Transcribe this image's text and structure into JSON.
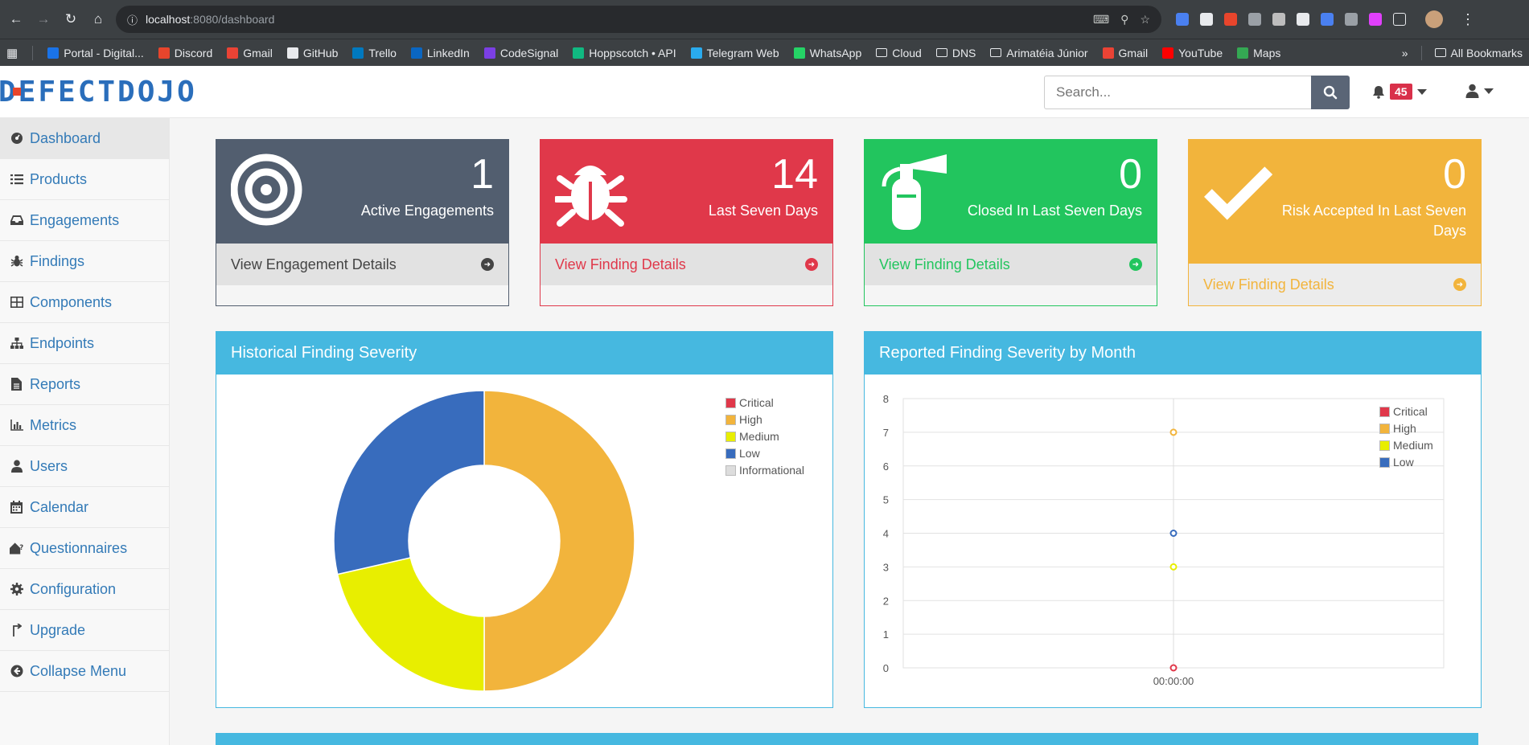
{
  "browser": {
    "url_host": "localhost",
    "url_rest": ":8080/dashboard",
    "bookmarks": [
      {
        "label": "Portal - Digital...",
        "color": "#1a73e8"
      },
      {
        "label": "Discord",
        "color": "#e8452c"
      },
      {
        "label": "Gmail",
        "color": "#ea4335"
      },
      {
        "label": "GitHub",
        "color": "#e8eaed"
      },
      {
        "label": "Trello",
        "color": "#0079bf"
      },
      {
        "label": "LinkedIn",
        "color": "#0a66c2"
      },
      {
        "label": "CodeSignal",
        "color": "#7b3fe4"
      },
      {
        "label": "Hoppscotch • API",
        "color": "#10b981"
      },
      {
        "label": "Telegram Web",
        "color": "#2aabee"
      },
      {
        "label": "WhatsApp",
        "color": "#25d366"
      }
    ],
    "folders": [
      "Cloud",
      "DNS",
      "Arimatéia Júnior"
    ],
    "bookmarks_tail": [
      {
        "label": "Gmail",
        "color": "#ea4335"
      },
      {
        "label": "YouTube",
        "color": "#ff0000"
      },
      {
        "label": "Maps",
        "color": "#34a853"
      }
    ],
    "more": "»",
    "all_bookmarks": "All Bookmarks"
  },
  "navbar": {
    "logo": "DEFECTDOJO",
    "search_placeholder": "Search...",
    "notification_count": "45"
  },
  "sidebar": {
    "items": [
      {
        "label": "Dashboard",
        "icon": "dashboard-icon"
      },
      {
        "label": "Products",
        "icon": "list-icon"
      },
      {
        "label": "Engagements",
        "icon": "inbox-icon"
      },
      {
        "label": "Findings",
        "icon": "bug-icon"
      },
      {
        "label": "Components",
        "icon": "table-icon"
      },
      {
        "label": "Endpoints",
        "icon": "sitemap-icon"
      },
      {
        "label": "Reports",
        "icon": "file-icon"
      },
      {
        "label": "Metrics",
        "icon": "bar-chart-icon"
      },
      {
        "label": "Users",
        "icon": "user-icon"
      },
      {
        "label": "Calendar",
        "icon": "calendar-icon"
      },
      {
        "label": "Questionnaires",
        "icon": "questionnaire-icon"
      },
      {
        "label": "Configuration",
        "icon": "gear-icon"
      },
      {
        "label": "Upgrade",
        "icon": "upgrade-icon"
      },
      {
        "label": "Collapse Menu",
        "icon": "collapse-icon"
      }
    ]
  },
  "stats": [
    {
      "value": "1",
      "label": "Active Engagements",
      "link": "View Engagement Details",
      "icon": "target-icon"
    },
    {
      "value": "14",
      "label": "Last Seven Days",
      "link": "View Finding Details",
      "icon": "bug-icon"
    },
    {
      "value": "0",
      "label": "Closed In Last Seven Days",
      "link": "View Finding Details",
      "icon": "fire-extinguisher-icon"
    },
    {
      "value": "0",
      "label": "Risk Accepted In Last Seven Days",
      "link": "View Finding Details",
      "icon": "check-icon"
    }
  ],
  "charts": {
    "historical_title": "Historical Finding Severity",
    "monthly_title": "Reported Finding Severity by Month"
  },
  "chart_data": [
    {
      "type": "pie",
      "title": "Historical Finding Severity",
      "categories": [
        "Critical",
        "High",
        "Medium",
        "Low",
        "Informational"
      ],
      "values": [
        0,
        7,
        3,
        4,
        0
      ],
      "colors": [
        "#e0384a",
        "#f2b43c",
        "#e8ee00",
        "#386cbd",
        "#dddddd"
      ],
      "legend": "top-right"
    },
    {
      "type": "scatter",
      "title": "Reported Finding Severity by Month",
      "x": [
        "00:00:00"
      ],
      "series": [
        {
          "name": "Critical",
          "values": [
            0
          ],
          "color": "#e0384a"
        },
        {
          "name": "High",
          "values": [
            7
          ],
          "color": "#f2b43c"
        },
        {
          "name": "Medium",
          "values": [
            3
          ],
          "color": "#e8ee00"
        },
        {
          "name": "Low",
          "values": [
            4
          ],
          "color": "#386cbd"
        }
      ],
      "ylim": [
        0,
        8
      ],
      "yticks": [
        "0",
        "1",
        "2",
        "3",
        "4",
        "5",
        "6",
        "7",
        "8"
      ],
      "grid": true,
      "legend": "top-right"
    }
  ]
}
